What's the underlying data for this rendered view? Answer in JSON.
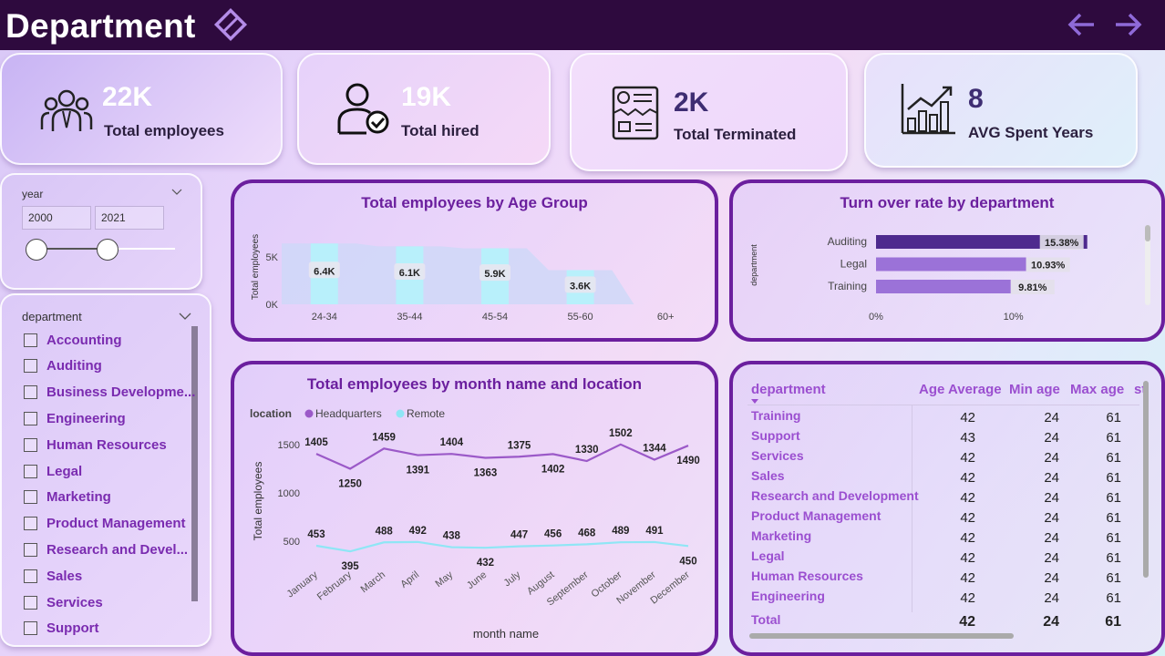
{
  "header": {
    "title": "Department"
  },
  "kpis": [
    {
      "value": "22K",
      "label": "Total employees",
      "icon": "employees-icon"
    },
    {
      "value": "19K",
      "label": "Total hired",
      "icon": "hired-user-icon"
    },
    {
      "value": "2K",
      "label": "Total Terminated",
      "icon": "terminated-document-icon"
    },
    {
      "value": "8",
      "label": "AVG Spent Years",
      "icon": "growth-chart-icon"
    }
  ],
  "year_slicer": {
    "label": "year",
    "from": "2000",
    "to": "2021"
  },
  "department_slicer": {
    "label": "department",
    "items": [
      "Accounting",
      "Auditing",
      "Business Developme...",
      "Engineering",
      "Human Resources",
      "Legal",
      "Marketing",
      "Product Management",
      "Research and Devel...",
      "Sales",
      "Services",
      "Support"
    ]
  },
  "chart_data": [
    {
      "type": "area",
      "title": "Total employees by Age Group",
      "ylabel": "Total employees",
      "xlabel": "",
      "categories": [
        "24-34",
        "35-44",
        "45-54",
        "55-60",
        "60+"
      ],
      "values": [
        6400,
        6100,
        5900,
        3600,
        0
      ],
      "data_labels": [
        "6.4K",
        "6.1K",
        "5.9K",
        "3.6K",
        ""
      ],
      "yticks": [
        "0K",
        "5K"
      ],
      "ylim": [
        0,
        7000
      ],
      "colors": {
        "bar": "#b8f0fb",
        "area": "#cfd8f8"
      }
    },
    {
      "type": "bar",
      "orientation": "horizontal",
      "title": "Turn over rate by department",
      "ylabel": "department",
      "categories": [
        "Auditing",
        "Legal",
        "Training"
      ],
      "values": [
        15.38,
        10.93,
        9.81
      ],
      "data_labels": [
        "15.38%",
        "10.93%",
        "9.81%"
      ],
      "xticks": [
        "0%",
        "10%"
      ],
      "xlim": [
        0,
        15.4
      ],
      "colors": {
        "Auditing": "#4e2a8e",
        "Legal": "#9b72d8",
        "Training": "#9b72d8"
      }
    },
    {
      "type": "line",
      "title": "Total employees by month name and location",
      "xlabel": "month name",
      "ylabel": "Total employees",
      "legend_title": "location",
      "categories": [
        "January",
        "February",
        "March",
        "April",
        "May",
        "June",
        "July",
        "August",
        "September",
        "October",
        "November",
        "December"
      ],
      "series": [
        {
          "name": "Headquarters",
          "color": "#9b59c8",
          "values": [
            1405,
            1250,
            1459,
            1391,
            1404,
            1363,
            1375,
            1402,
            1330,
            1502,
            1344,
            1490
          ]
        },
        {
          "name": "Remote",
          "color": "#8fe6f5",
          "values": [
            453,
            395,
            488,
            492,
            438,
            432,
            447,
            456,
            468,
            489,
            491,
            450
          ]
        }
      ],
      "yticks": [
        "500",
        "1000",
        "1500"
      ],
      "ylim": [
        300,
        1600
      ]
    }
  ],
  "age_table": {
    "columns": [
      "department",
      "Age Average",
      "Min age",
      "Max age",
      "st"
    ],
    "rows": [
      {
        "department": "Training",
        "avg": "42",
        "min": "24",
        "max": "61"
      },
      {
        "department": "Support",
        "avg": "43",
        "min": "24",
        "max": "61"
      },
      {
        "department": "Services",
        "avg": "42",
        "min": "24",
        "max": "61"
      },
      {
        "department": "Sales",
        "avg": "42",
        "min": "24",
        "max": "61"
      },
      {
        "department": "Research and Development",
        "avg": "42",
        "min": "24",
        "max": "61"
      },
      {
        "department": "Product Management",
        "avg": "42",
        "min": "24",
        "max": "61"
      },
      {
        "department": "Marketing",
        "avg": "42",
        "min": "24",
        "max": "61"
      },
      {
        "department": "Legal",
        "avg": "42",
        "min": "24",
        "max": "61"
      },
      {
        "department": "Human Resources",
        "avg": "42",
        "min": "24",
        "max": "61"
      },
      {
        "department": "Engineering",
        "avg": "42",
        "min": "24",
        "max": "61"
      }
    ],
    "total": {
      "label": "Total",
      "avg": "42",
      "min": "24",
      "max": "61"
    }
  }
}
